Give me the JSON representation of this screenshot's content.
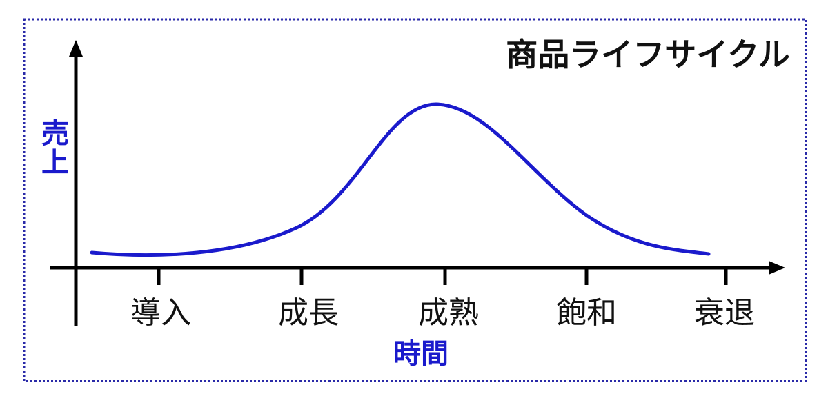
{
  "title": "商品ライフサイクル",
  "y_axis_label": "売上",
  "x_axis_label": "時間",
  "stages": [
    "導入",
    "成長",
    "成熟",
    "飽和",
    "衰退"
  ]
}
